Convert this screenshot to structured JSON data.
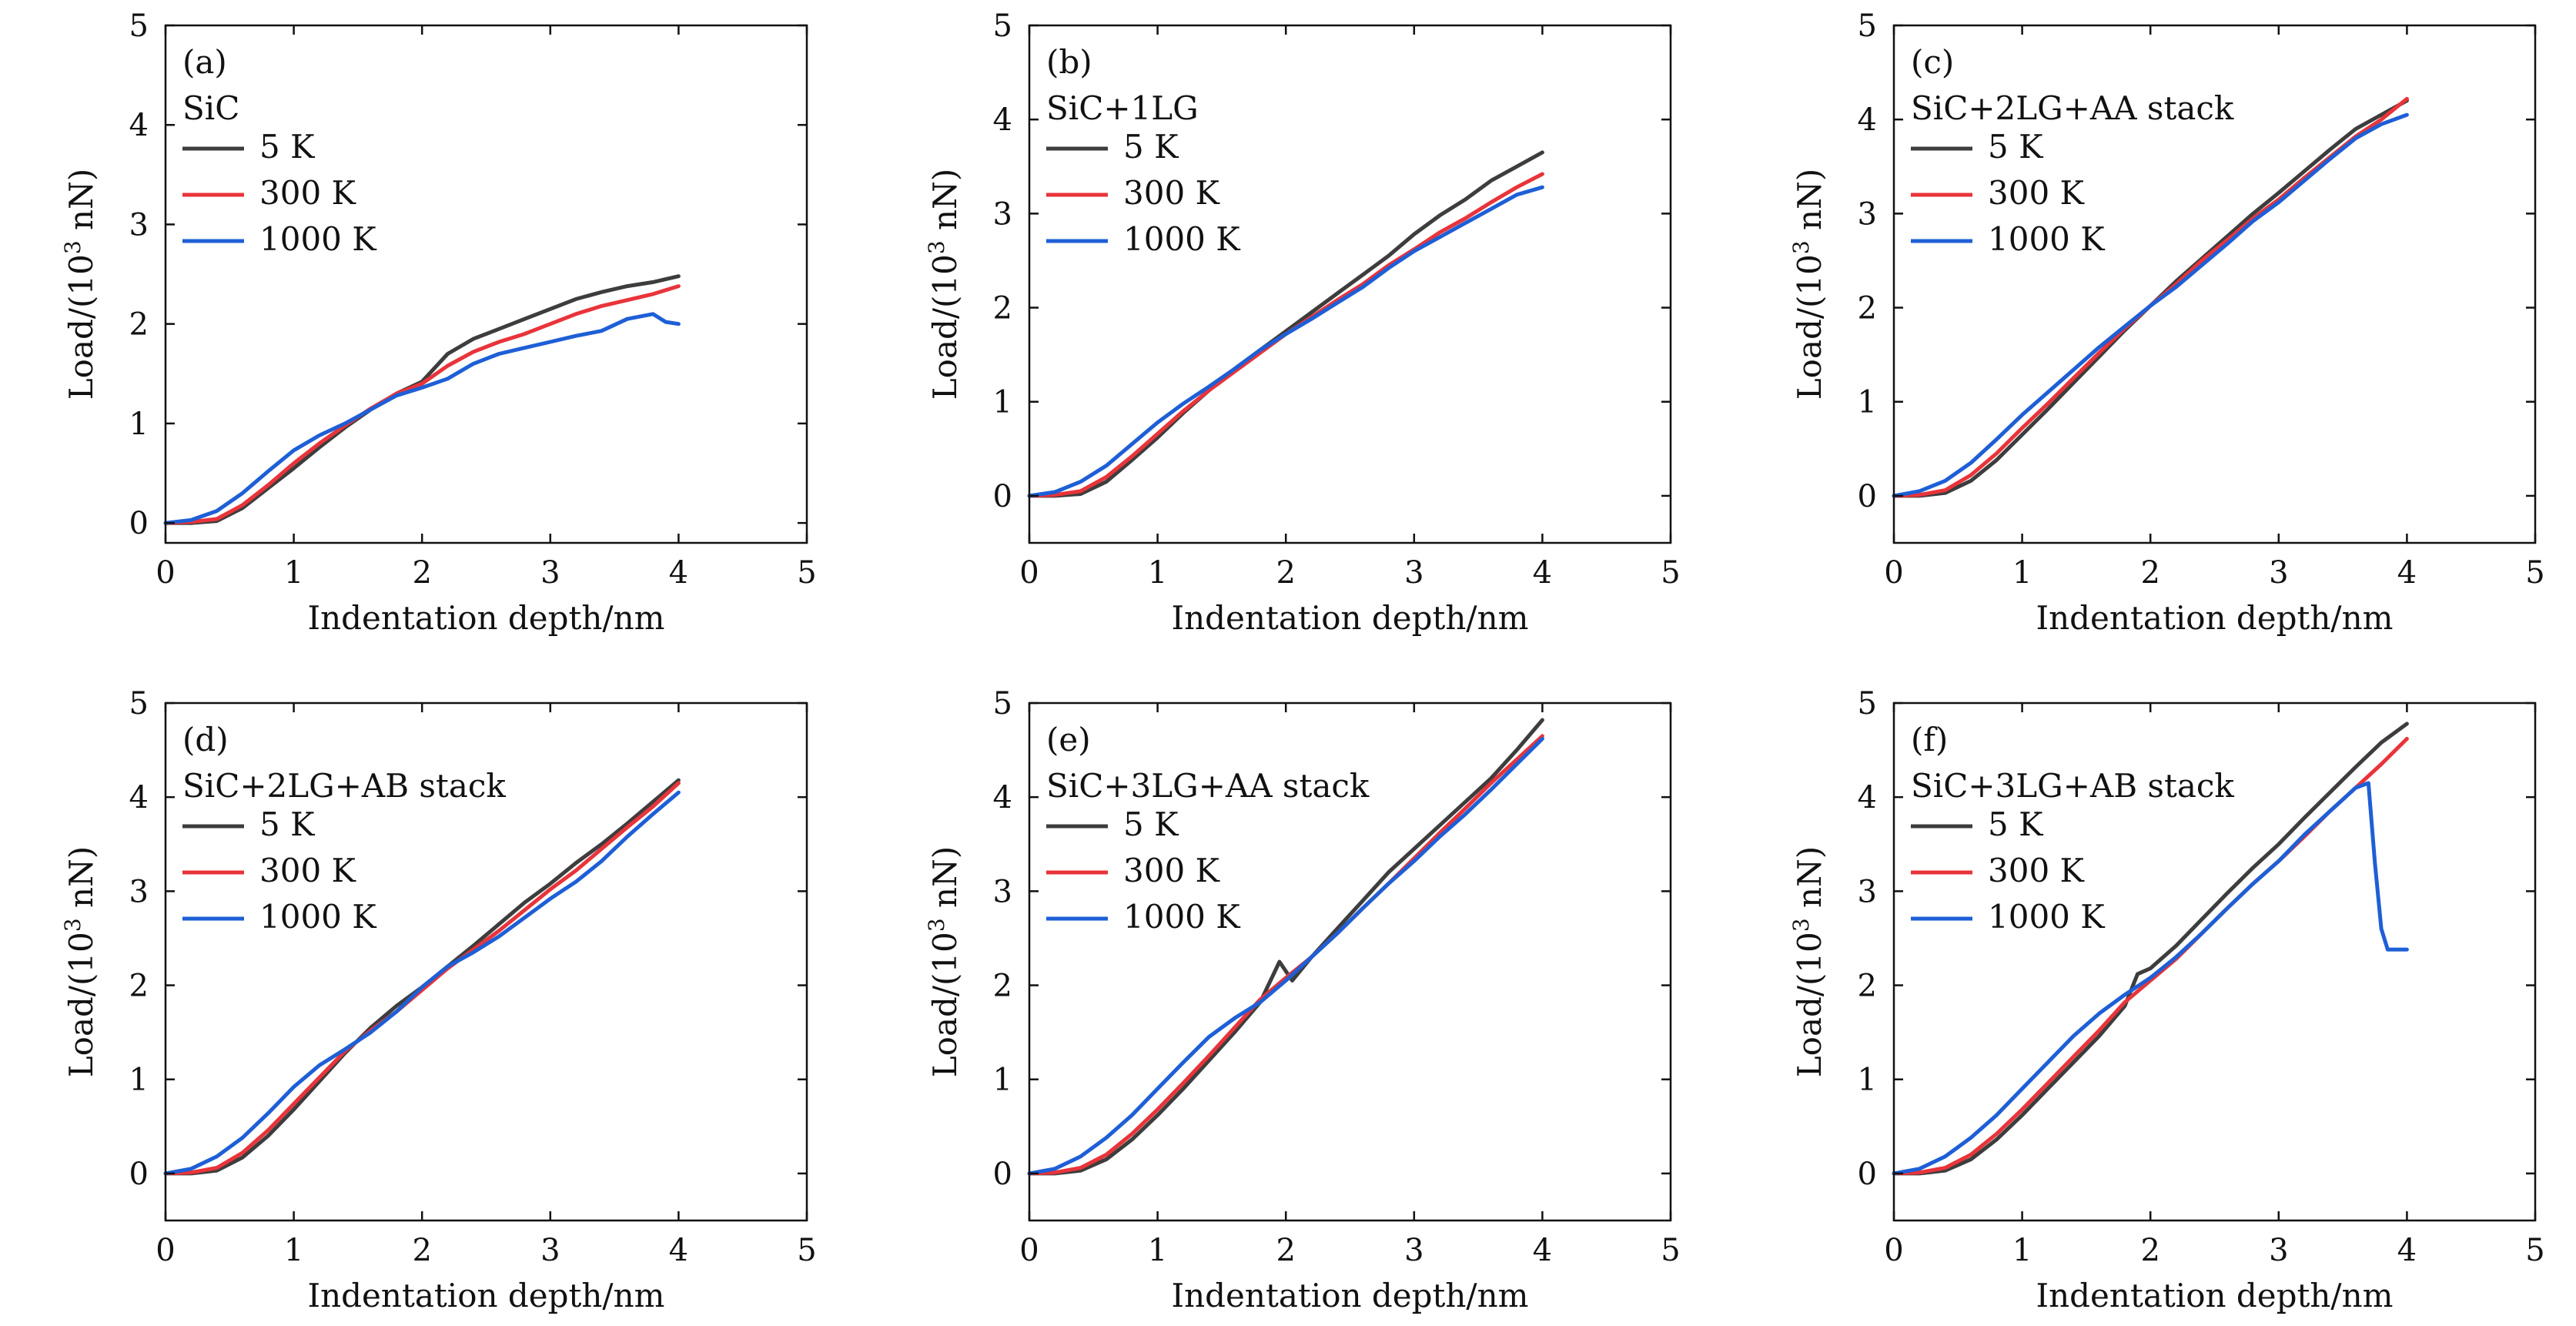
{
  "colors": {
    "5 K": "#3d3d3d",
    "300 K": "#e8343a",
    "1000 K": "#1e5fd6"
  },
  "chart_data": [
    {
      "type": "line",
      "panel_label": "(a)",
      "sample": "SiC",
      "xlabel": "Indentation depth/nm",
      "ylabel": "Load/(10",
      "ylabel_sup": "3",
      "ylabel_unit": " nN)",
      "xlim": [
        0,
        5
      ],
      "ylim": [
        -0.2,
        5
      ],
      "xticks": [
        "0",
        "1",
        "2",
        "3",
        "4",
        "5"
      ],
      "yticks": [
        "0",
        "1",
        "2",
        "3",
        "4",
        "5"
      ],
      "legend_position": "top-left",
      "series": [
        {
          "name": "5 K",
          "x": [
            0,
            0.2,
            0.4,
            0.6,
            0.8,
            1.0,
            1.2,
            1.4,
            1.6,
            1.8,
            2.0,
            2.2,
            2.4,
            2.6,
            2.8,
            3.0,
            3.2,
            3.4,
            3.6,
            3.8,
            4.0
          ],
          "y": [
            0,
            0,
            0.02,
            0.15,
            0.35,
            0.55,
            0.76,
            0.96,
            1.14,
            1.3,
            1.42,
            1.7,
            1.85,
            1.95,
            2.05,
            2.15,
            2.25,
            2.32,
            2.38,
            2.42,
            2.48
          ]
        },
        {
          "name": "300 K",
          "x": [
            0,
            0.2,
            0.4,
            0.6,
            0.8,
            1.0,
            1.2,
            1.4,
            1.6,
            1.8,
            2.0,
            2.2,
            2.4,
            2.6,
            2.8,
            3.0,
            3.2,
            3.4,
            3.6,
            3.8,
            4.0
          ],
          "y": [
            0,
            0.01,
            0.04,
            0.18,
            0.38,
            0.6,
            0.8,
            0.98,
            1.15,
            1.3,
            1.4,
            1.58,
            1.72,
            1.82,
            1.9,
            2.0,
            2.1,
            2.18,
            2.24,
            2.3,
            2.38
          ]
        },
        {
          "name": "1000 K",
          "x": [
            0,
            0.2,
            0.4,
            0.6,
            0.8,
            1.0,
            1.2,
            1.4,
            1.6,
            1.8,
            2.0,
            2.2,
            2.4,
            2.6,
            2.8,
            3.0,
            3.2,
            3.4,
            3.6,
            3.8,
            3.9,
            4.0
          ],
          "y": [
            0,
            0.03,
            0.12,
            0.3,
            0.52,
            0.73,
            0.88,
            1.0,
            1.14,
            1.28,
            1.36,
            1.45,
            1.6,
            1.7,
            1.76,
            1.82,
            1.88,
            1.93,
            2.05,
            2.1,
            2.02,
            2.0
          ]
        }
      ]
    },
    {
      "type": "line",
      "panel_label": "(b)",
      "sample": "SiC+1LG",
      "xlabel": "Indentation depth/nm",
      "ylabel": "Load/(10",
      "ylabel_sup": "3",
      "ylabel_unit": " nN)",
      "xlim": [
        0,
        5
      ],
      "ylim": [
        -0.5,
        5
      ],
      "xticks": [
        "0",
        "1",
        "2",
        "3",
        "4",
        "5"
      ],
      "yticks": [
        "0",
        "1",
        "2",
        "3",
        "4",
        "5"
      ],
      "legend_position": "top-left",
      "series": [
        {
          "name": "5 K",
          "x": [
            0,
            0.2,
            0.4,
            0.6,
            0.8,
            1.0,
            1.2,
            1.4,
            1.6,
            1.8,
            2.0,
            2.2,
            2.4,
            2.6,
            2.8,
            3.0,
            3.2,
            3.4,
            3.6,
            3.8,
            4.0
          ],
          "y": [
            0,
            0,
            0.02,
            0.15,
            0.38,
            0.62,
            0.88,
            1.12,
            1.35,
            1.55,
            1.75,
            1.95,
            2.15,
            2.35,
            2.55,
            2.78,
            2.98,
            3.15,
            3.35,
            3.5,
            3.65
          ]
        },
        {
          "name": "300 K",
          "x": [
            0,
            0.2,
            0.4,
            0.6,
            0.8,
            1.0,
            1.2,
            1.4,
            1.6,
            1.8,
            2.0,
            2.2,
            2.4,
            2.6,
            2.8,
            3.0,
            3.2,
            3.4,
            3.6,
            3.8,
            4.0
          ],
          "y": [
            0,
            0.01,
            0.05,
            0.2,
            0.42,
            0.66,
            0.9,
            1.12,
            1.32,
            1.52,
            1.72,
            1.9,
            2.08,
            2.25,
            2.45,
            2.62,
            2.8,
            2.95,
            3.12,
            3.28,
            3.42
          ]
        },
        {
          "name": "1000 K",
          "x": [
            0,
            0.2,
            0.4,
            0.6,
            0.8,
            1.0,
            1.2,
            1.4,
            1.6,
            1.8,
            2.0,
            2.2,
            2.4,
            2.6,
            2.8,
            3.0,
            3.2,
            3.4,
            3.6,
            3.8,
            4.0
          ],
          "y": [
            0,
            0.04,
            0.15,
            0.32,
            0.55,
            0.78,
            0.98,
            1.16,
            1.35,
            1.55,
            1.72,
            1.88,
            2.05,
            2.22,
            2.42,
            2.6,
            2.75,
            2.9,
            3.05,
            3.2,
            3.28
          ]
        }
      ]
    },
    {
      "type": "line",
      "panel_label": "(c)",
      "sample": "SiC+2LG+AA stack",
      "xlabel": "Indentation depth/nm",
      "ylabel": "Load/(10",
      "ylabel_sup": "3",
      "ylabel_unit": " nN)",
      "xlim": [
        0,
        5
      ],
      "ylim": [
        -0.5,
        5
      ],
      "xticks": [
        "0",
        "1",
        "2",
        "3",
        "4",
        "5"
      ],
      "yticks": [
        "0",
        "1",
        "2",
        "3",
        "4",
        "5"
      ],
      "legend_position": "top-left",
      "series": [
        {
          "name": "5 K",
          "x": [
            0,
            0.2,
            0.4,
            0.6,
            0.8,
            1.0,
            1.2,
            1.4,
            1.6,
            1.8,
            2.0,
            2.2,
            2.4,
            2.6,
            2.8,
            3.0,
            3.2,
            3.4,
            3.6,
            3.8,
            4.0
          ],
          "y": [
            0,
            0,
            0.03,
            0.16,
            0.38,
            0.65,
            0.92,
            1.2,
            1.48,
            1.76,
            2.02,
            2.28,
            2.52,
            2.76,
            3.0,
            3.22,
            3.45,
            3.68,
            3.9,
            4.05,
            4.2
          ]
        },
        {
          "name": "300 K",
          "x": [
            0,
            0.2,
            0.4,
            0.6,
            0.8,
            1.0,
            1.2,
            1.4,
            1.6,
            1.8,
            2.0,
            2.2,
            2.4,
            2.6,
            2.8,
            3.0,
            3.2,
            3.4,
            3.6,
            3.8,
            4.0
          ],
          "y": [
            0,
            0.01,
            0.06,
            0.22,
            0.45,
            0.72,
            0.98,
            1.25,
            1.52,
            1.78,
            2.02,
            2.25,
            2.5,
            2.72,
            2.95,
            3.15,
            3.38,
            3.6,
            3.82,
            4.0,
            4.22
          ]
        },
        {
          "name": "1000 K",
          "x": [
            0,
            0.2,
            0.4,
            0.6,
            0.8,
            1.0,
            1.2,
            1.4,
            1.6,
            1.8,
            2.0,
            2.2,
            2.4,
            2.6,
            2.8,
            3.0,
            3.2,
            3.4,
            3.6,
            3.8,
            4.0
          ],
          "y": [
            0,
            0.05,
            0.16,
            0.35,
            0.6,
            0.86,
            1.1,
            1.34,
            1.58,
            1.8,
            2.02,
            2.22,
            2.45,
            2.68,
            2.92,
            3.12,
            3.35,
            3.58,
            3.8,
            3.95,
            4.05
          ]
        }
      ]
    },
    {
      "type": "line",
      "panel_label": "(d)",
      "sample": "SiC+2LG+AB stack",
      "xlabel": "Indentation depth/nm",
      "ylabel": "Load/(10",
      "ylabel_sup": "3",
      "ylabel_unit": " nN)",
      "xlim": [
        0,
        5
      ],
      "ylim": [
        -0.5,
        5
      ],
      "xticks": [
        "0",
        "1",
        "2",
        "3",
        "4",
        "5"
      ],
      "yticks": [
        "0",
        "1",
        "2",
        "3",
        "4",
        "5"
      ],
      "legend_position": "top-left",
      "series": [
        {
          "name": "5 K",
          "x": [
            0,
            0.2,
            0.4,
            0.6,
            0.8,
            1.0,
            1.2,
            1.4,
            1.6,
            1.8,
            2.0,
            2.2,
            2.4,
            2.6,
            2.8,
            3.0,
            3.2,
            3.4,
            3.6,
            3.8,
            4.0
          ],
          "y": [
            0,
            0,
            0.03,
            0.17,
            0.4,
            0.68,
            0.98,
            1.28,
            1.55,
            1.78,
            1.98,
            2.2,
            2.42,
            2.65,
            2.88,
            3.08,
            3.3,
            3.5,
            3.72,
            3.95,
            4.18
          ]
        },
        {
          "name": "300 K",
          "x": [
            0,
            0.2,
            0.4,
            0.6,
            0.8,
            1.0,
            1.2,
            1.4,
            1.6,
            1.8,
            2.0,
            2.2,
            2.4,
            2.6,
            2.8,
            3.0,
            3.2,
            3.4,
            3.6,
            3.8,
            4.0
          ],
          "y": [
            0,
            0.01,
            0.06,
            0.22,
            0.46,
            0.74,
            1.02,
            1.3,
            1.52,
            1.72,
            1.95,
            2.18,
            2.38,
            2.58,
            2.8,
            3.02,
            3.22,
            3.45,
            3.68,
            3.9,
            4.15
          ]
        },
        {
          "name": "1000 K",
          "x": [
            0,
            0.2,
            0.4,
            0.6,
            0.8,
            1.0,
            1.2,
            1.4,
            1.6,
            1.8,
            2.0,
            2.2,
            2.4,
            2.6,
            2.8,
            3.0,
            3.2,
            3.4,
            3.6,
            3.8,
            4.0
          ],
          "y": [
            0,
            0.05,
            0.18,
            0.38,
            0.64,
            0.92,
            1.15,
            1.32,
            1.5,
            1.72,
            1.98,
            2.2,
            2.35,
            2.52,
            2.72,
            2.92,
            3.1,
            3.32,
            3.58,
            3.82,
            4.05
          ]
        }
      ]
    },
    {
      "type": "line",
      "panel_label": "(e)",
      "sample": "SiC+3LG+AA stack",
      "xlabel": "Indentation depth/nm",
      "ylabel": "Load/(10",
      "ylabel_sup": "3",
      "ylabel_unit": " nN)",
      "xlim": [
        0,
        5
      ],
      "ylim": [
        -0.5,
        5
      ],
      "xticks": [
        "0",
        "1",
        "2",
        "3",
        "4",
        "5"
      ],
      "yticks": [
        "0",
        "1",
        "2",
        "3",
        "4",
        "5"
      ],
      "legend_position": "top-left",
      "series": [
        {
          "name": "5 K",
          "x": [
            0,
            0.2,
            0.4,
            0.6,
            0.8,
            1.0,
            1.2,
            1.4,
            1.6,
            1.8,
            1.95,
            2.05,
            2.2,
            2.4,
            2.6,
            2.8,
            3.0,
            3.2,
            3.4,
            3.6,
            3.8,
            4.0
          ],
          "y": [
            0,
            0,
            0.03,
            0.15,
            0.36,
            0.62,
            0.9,
            1.2,
            1.5,
            1.82,
            2.25,
            2.05,
            2.3,
            2.6,
            2.9,
            3.2,
            3.45,
            3.7,
            3.95,
            4.2,
            4.5,
            4.82
          ]
        },
        {
          "name": "300 K",
          "x": [
            0,
            0.2,
            0.4,
            0.6,
            0.8,
            1.0,
            1.2,
            1.4,
            1.6,
            1.8,
            2.0,
            2.2,
            2.4,
            2.6,
            2.8,
            3.0,
            3.2,
            3.4,
            3.6,
            3.8,
            4.0
          ],
          "y": [
            0,
            0.01,
            0.06,
            0.2,
            0.42,
            0.68,
            0.96,
            1.25,
            1.55,
            1.85,
            2.08,
            2.3,
            2.55,
            2.82,
            3.08,
            3.35,
            3.62,
            3.88,
            4.15,
            4.4,
            4.65
          ]
        },
        {
          "name": "1000 K",
          "x": [
            0,
            0.2,
            0.4,
            0.6,
            0.8,
            1.0,
            1.2,
            1.4,
            1.6,
            1.8,
            2.0,
            2.2,
            2.4,
            2.6,
            2.8,
            3.0,
            3.2,
            3.4,
            3.6,
            3.8,
            4.0
          ],
          "y": [
            0,
            0.05,
            0.18,
            0.38,
            0.62,
            0.9,
            1.18,
            1.45,
            1.65,
            1.82,
            2.05,
            2.3,
            2.55,
            2.82,
            3.08,
            3.32,
            3.58,
            3.82,
            4.08,
            4.35,
            4.62
          ]
        }
      ]
    },
    {
      "type": "line",
      "panel_label": "(f)",
      "sample": "SiC+3LG+AB stack",
      "xlabel": "Indentation depth/nm",
      "ylabel": "Load/(10",
      "ylabel_sup": "3",
      "ylabel_unit": " nN)",
      "xlim": [
        0,
        5
      ],
      "ylim": [
        -0.5,
        5
      ],
      "xticks": [
        "0",
        "1",
        "2",
        "3",
        "4",
        "5"
      ],
      "yticks": [
        "0",
        "1",
        "2",
        "3",
        "4",
        "5"
      ],
      "legend_position": "top-left",
      "series": [
        {
          "name": "5 K",
          "x": [
            0,
            0.2,
            0.4,
            0.6,
            0.8,
            1.0,
            1.2,
            1.4,
            1.6,
            1.8,
            1.9,
            2.0,
            2.2,
            2.4,
            2.6,
            2.8,
            3.0,
            3.2,
            3.4,
            3.6,
            3.8,
            4.0
          ],
          "y": [
            0,
            0,
            0.03,
            0.15,
            0.36,
            0.62,
            0.9,
            1.18,
            1.46,
            1.78,
            2.12,
            2.18,
            2.42,
            2.7,
            2.98,
            3.25,
            3.5,
            3.78,
            4.05,
            4.32,
            4.58,
            4.78
          ]
        },
        {
          "name": "300 K",
          "x": [
            0,
            0.2,
            0.4,
            0.6,
            0.8,
            1.0,
            1.2,
            1.4,
            1.6,
            1.8,
            2.0,
            2.2,
            2.4,
            2.6,
            2.8,
            3.0,
            3.2,
            3.4,
            3.6,
            3.8,
            4.0
          ],
          "y": [
            0,
            0.01,
            0.06,
            0.2,
            0.42,
            0.68,
            0.96,
            1.24,
            1.52,
            1.82,
            2.05,
            2.28,
            2.55,
            2.82,
            3.08,
            3.32,
            3.58,
            3.85,
            4.1,
            4.35,
            4.62
          ]
        },
        {
          "name": "1000 K",
          "x": [
            0,
            0.2,
            0.4,
            0.6,
            0.8,
            1.0,
            1.2,
            1.4,
            1.6,
            1.8,
            2.0,
            2.2,
            2.4,
            2.6,
            2.8,
            3.0,
            3.2,
            3.4,
            3.6,
            3.7,
            3.75,
            3.8,
            3.85,
            4.0
          ],
          "y": [
            0,
            0.05,
            0.18,
            0.38,
            0.62,
            0.9,
            1.18,
            1.46,
            1.7,
            1.9,
            2.08,
            2.3,
            2.55,
            2.82,
            3.08,
            3.32,
            3.6,
            3.85,
            4.1,
            4.15,
            3.3,
            2.6,
            2.38,
            2.38
          ]
        }
      ]
    }
  ]
}
